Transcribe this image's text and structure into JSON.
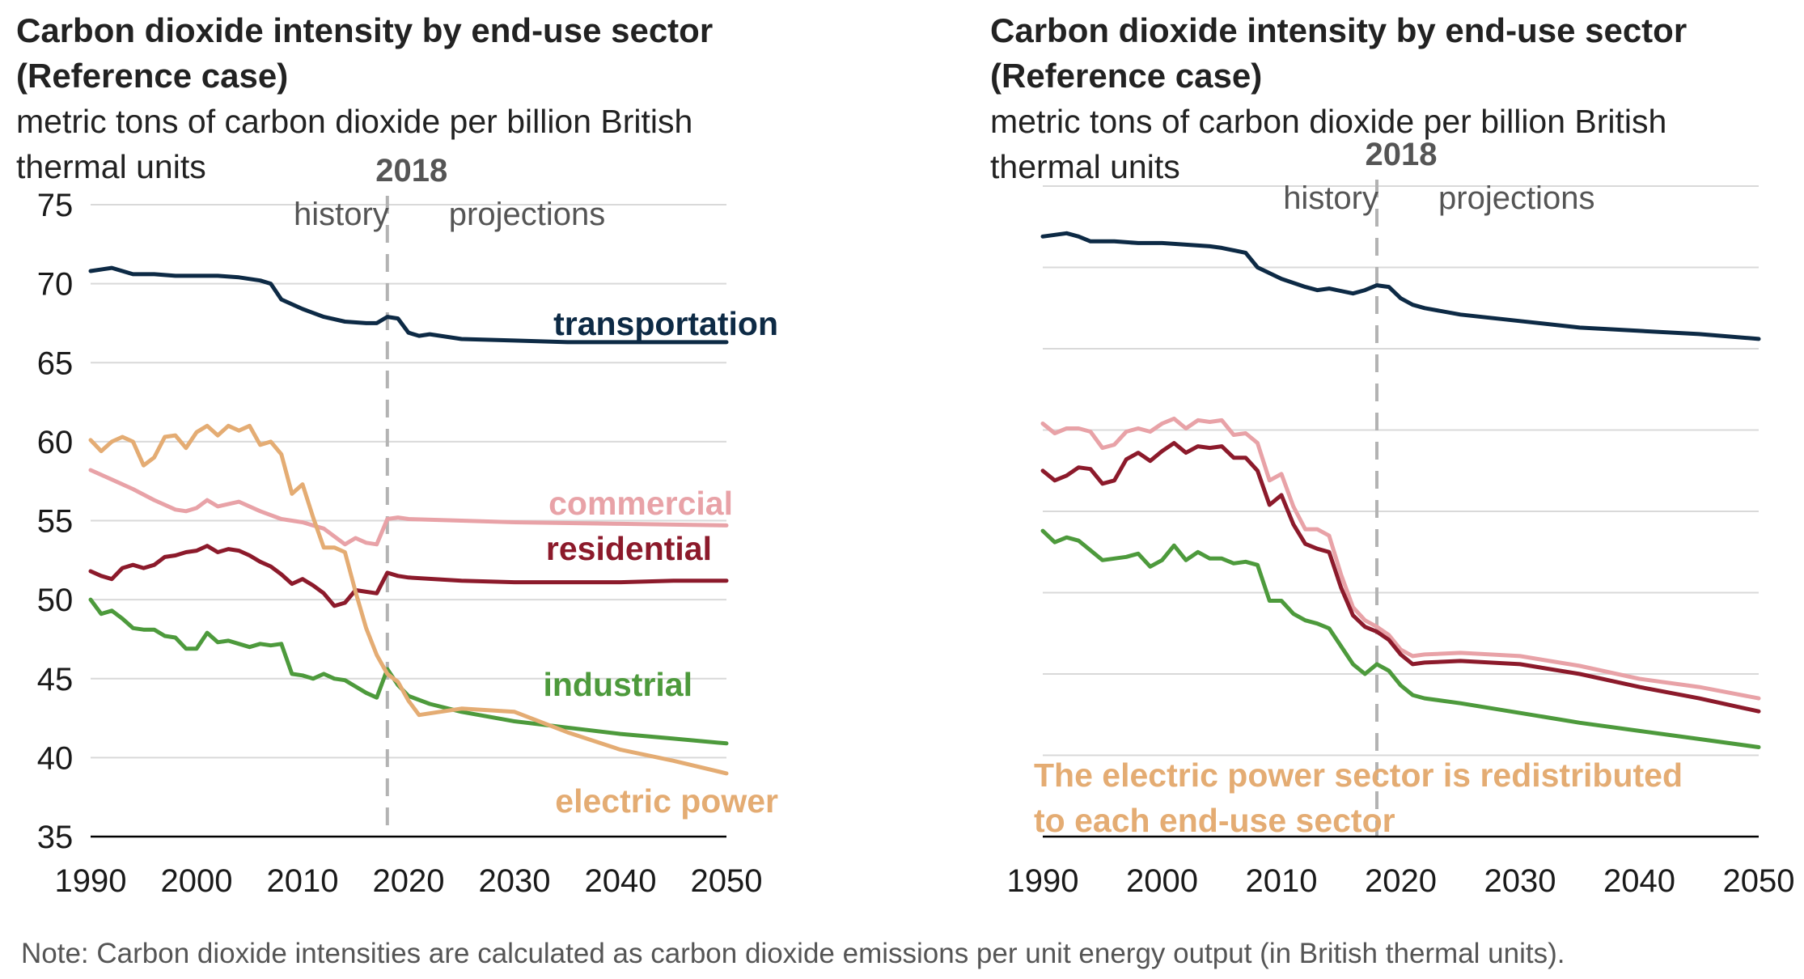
{
  "note": "Note: Carbon dioxide intensities are calculated as carbon dioxide emissions per unit energy output (in British thermal units).",
  "colors": {
    "transportation": "#0d2a45",
    "commercial": "#e8a2a7",
    "residential": "#8c1a2b",
    "industrial": "#4d9a3c",
    "electric_power": "#e4ac73"
  },
  "chart_data": [
    {
      "type": "line",
      "title_lines": [
        "Carbon dioxide intensity by end-use sector",
        "(Reference case)"
      ],
      "subtitle_lines": [
        "metric tons of carbon dioxide per billion British",
        "thermal units"
      ],
      "xlim": [
        1990,
        2050
      ],
      "ylim": [
        35,
        75
      ],
      "x_ticks": [
        "1990",
        "2000",
        "2010",
        "2020",
        "2030",
        "2040",
        "2050"
      ],
      "y_ticks": [
        "35",
        "40",
        "45",
        "50",
        "55",
        "60",
        "65",
        "70",
        "75"
      ],
      "divider_year": "2018",
      "history_label": "history",
      "projections_label": "projections",
      "series": [
        {
          "name": "transportation",
          "color_key": "transportation",
          "x": [
            1990,
            1992,
            1994,
            1996,
            1998,
            2000,
            2002,
            2004,
            2006,
            2007,
            2008,
            2010,
            2012,
            2014,
            2016,
            2017,
            2018,
            2019,
            2020,
            2021,
            2022,
            2025,
            2030,
            2035,
            2040,
            2045,
            2050
          ],
          "y": [
            70.8,
            71.0,
            70.6,
            70.6,
            70.5,
            70.5,
            70.5,
            70.4,
            70.2,
            70.0,
            69.0,
            68.4,
            67.9,
            67.6,
            67.5,
            67.5,
            67.9,
            67.8,
            66.9,
            66.7,
            66.8,
            66.5,
            66.4,
            66.3,
            66.3,
            66.3,
            66.3
          ]
        },
        {
          "name": "commercial",
          "color_key": "commercial",
          "x": [
            1990,
            1992,
            1994,
            1996,
            1998,
            1999,
            2000,
            2001,
            2002,
            2004,
            2006,
            2008,
            2010,
            2012,
            2014,
            2015,
            2016,
            2017,
            2018,
            2019,
            2020,
            2025,
            2030,
            2040,
            2050
          ],
          "y": [
            58.2,
            57.6,
            57.0,
            56.3,
            55.7,
            55.6,
            55.8,
            56.3,
            55.9,
            56.2,
            55.6,
            55.1,
            54.9,
            54.5,
            53.5,
            53.9,
            53.6,
            53.5,
            55.1,
            55.2,
            55.1,
            55.0,
            54.9,
            54.8,
            54.7
          ]
        },
        {
          "name": "residential",
          "color_key": "residential",
          "x": [
            1990,
            1991,
            1992,
            1993,
            1994,
            1995,
            1996,
            1997,
            1998,
            1999,
            2000,
            2001,
            2002,
            2003,
            2004,
            2005,
            2006,
            2007,
            2008,
            2009,
            2010,
            2011,
            2012,
            2013,
            2014,
            2015,
            2016,
            2017,
            2018,
            2019,
            2020,
            2025,
            2030,
            2035,
            2040,
            2045,
            2050
          ],
          "y": [
            51.8,
            51.5,
            51.3,
            52.0,
            52.2,
            52.0,
            52.2,
            52.7,
            52.8,
            53.0,
            53.1,
            53.4,
            53.0,
            53.2,
            53.1,
            52.8,
            52.4,
            52.1,
            51.6,
            51.0,
            51.3,
            50.9,
            50.4,
            49.6,
            49.8,
            50.6,
            50.5,
            50.4,
            51.7,
            51.5,
            51.4,
            51.2,
            51.1,
            51.1,
            51.1,
            51.2,
            51.2
          ]
        },
        {
          "name": "industrial",
          "color_key": "industrial",
          "x": [
            1990,
            1991,
            1992,
            1993,
            1994,
            1995,
            1996,
            1997,
            1998,
            1999,
            2000,
            2001,
            2002,
            2003,
            2004,
            2005,
            2006,
            2007,
            2008,
            2009,
            2010,
            2011,
            2012,
            2013,
            2014,
            2015,
            2016,
            2017,
            2018,
            2019,
            2020,
            2022,
            2025,
            2030,
            2035,
            2040,
            2045,
            2050
          ],
          "y": [
            50.0,
            49.1,
            49.3,
            48.8,
            48.2,
            48.1,
            48.1,
            47.7,
            47.6,
            46.9,
            46.9,
            47.9,
            47.3,
            47.4,
            47.2,
            47.0,
            47.2,
            47.1,
            47.2,
            45.3,
            45.2,
            45.0,
            45.3,
            45.0,
            44.9,
            44.5,
            44.1,
            43.8,
            45.6,
            44.6,
            43.9,
            43.4,
            42.9,
            42.3,
            41.9,
            41.5,
            41.2,
            40.9
          ]
        },
        {
          "name": "electric power",
          "color_key": "electric_power",
          "x": [
            1990,
            1991,
            1992,
            1993,
            1994,
            1995,
            1996,
            1997,
            1998,
            1999,
            2000,
            2001,
            2002,
            2003,
            2004,
            2005,
            2006,
            2007,
            2008,
            2009,
            2010,
            2011,
            2012,
            2013,
            2014,
            2015,
            2016,
            2017,
            2018,
            2019,
            2020,
            2021,
            2022,
            2025,
            2030,
            2035,
            2040,
            2045,
            2050
          ],
          "y": [
            60.1,
            59.4,
            60.0,
            60.3,
            60.0,
            58.5,
            59.0,
            60.3,
            60.4,
            59.6,
            60.6,
            61.0,
            60.4,
            61.0,
            60.7,
            61.0,
            59.8,
            60.0,
            59.2,
            56.7,
            57.3,
            55.2,
            53.3,
            53.3,
            53.0,
            50.5,
            48.2,
            46.5,
            45.3,
            44.8,
            43.6,
            42.7,
            42.8,
            43.1,
            42.9,
            41.6,
            40.5,
            39.8,
            39.0
          ]
        }
      ],
      "series_labels": [
        "transportation",
        "commercial",
        "residential",
        "industrial",
        "electric power"
      ]
    },
    {
      "type": "line",
      "title_lines": [
        "Carbon dioxide intensity by end-use sector",
        "(Reference case)"
      ],
      "subtitle_lines": [
        "metric tons of carbon dioxide per billion British",
        "thermal units"
      ],
      "xlim": [
        1990,
        2050
      ],
      "ylim": [
        35,
        75
      ],
      "x_ticks": [
        "1990",
        "2000",
        "2010",
        "2020",
        "2030",
        "2040",
        "2050"
      ],
      "y_ticks": [],
      "divider_year": "2018",
      "history_label": "history",
      "projections_label": "projections",
      "annotation_lines": [
        "The electric power sector is redistributed",
        "to each end-use sector"
      ],
      "series": [
        {
          "name": "transportation",
          "color_key": "transportation",
          "x": [
            1990,
            1991,
            1992,
            1993,
            1994,
            1996,
            1998,
            2000,
            2002,
            2004,
            2005,
            2007,
            2008,
            2010,
            2012,
            2013,
            2014,
            2016,
            2017,
            2018,
            2019,
            2020,
            2021,
            2022,
            2025,
            2030,
            2035,
            2040,
            2045,
            2050
          ],
          "y": [
            71.9,
            72.0,
            72.1,
            71.9,
            71.6,
            71.6,
            71.5,
            71.5,
            71.4,
            71.3,
            71.2,
            70.9,
            70.0,
            69.3,
            68.8,
            68.6,
            68.7,
            68.4,
            68.6,
            68.9,
            68.8,
            68.1,
            67.7,
            67.5,
            67.1,
            66.7,
            66.3,
            66.1,
            65.9,
            65.6
          ]
        },
        {
          "name": "commercial",
          "color_key": "commercial",
          "x": [
            1990,
            1991,
            1992,
            1993,
            1994,
            1995,
            1996,
            1997,
            1998,
            1999,
            2000,
            2001,
            2002,
            2003,
            2004,
            2005,
            2006,
            2007,
            2008,
            2009,
            2010,
            2011,
            2012,
            2013,
            2014,
            2015,
            2016,
            2017,
            2018,
            2019,
            2020,
            2021,
            2022,
            2025,
            2030,
            2035,
            2040,
            2045,
            2050
          ],
          "y": [
            60.4,
            59.8,
            60.1,
            60.1,
            59.9,
            58.9,
            59.1,
            59.9,
            60.1,
            59.9,
            60.4,
            60.7,
            60.1,
            60.6,
            60.5,
            60.6,
            59.7,
            59.8,
            59.2,
            56.9,
            57.3,
            55.3,
            53.9,
            53.9,
            53.5,
            51.1,
            49.1,
            48.3,
            47.9,
            47.4,
            46.5,
            46.1,
            46.2,
            46.3,
            46.1,
            45.5,
            44.7,
            44.2,
            43.5
          ]
        },
        {
          "name": "residential",
          "color_key": "residential",
          "x": [
            1990,
            1991,
            1992,
            1993,
            1994,
            1995,
            1996,
            1997,
            1998,
            1999,
            2000,
            2001,
            2002,
            2003,
            2004,
            2005,
            2006,
            2007,
            2008,
            2009,
            2010,
            2011,
            2012,
            2013,
            2014,
            2015,
            2016,
            2017,
            2018,
            2019,
            2020,
            2021,
            2022,
            2025,
            2030,
            2035,
            2040,
            2045,
            2050
          ],
          "y": [
            57.5,
            56.9,
            57.2,
            57.7,
            57.6,
            56.7,
            56.9,
            58.2,
            58.6,
            58.1,
            58.7,
            59.2,
            58.6,
            59.0,
            58.9,
            59.0,
            58.3,
            58.3,
            57.5,
            55.4,
            56.0,
            54.2,
            53.0,
            52.7,
            52.5,
            50.3,
            48.6,
            47.9,
            47.6,
            47.1,
            46.2,
            45.6,
            45.7,
            45.8,
            45.6,
            45.0,
            44.2,
            43.5,
            42.7
          ]
        },
        {
          "name": "industrial",
          "color_key": "industrial",
          "x": [
            1990,
            1991,
            1992,
            1993,
            1994,
            1995,
            1996,
            1997,
            1998,
            1999,
            2000,
            2001,
            2002,
            2003,
            2004,
            2005,
            2006,
            2007,
            2008,
            2009,
            2010,
            2011,
            2012,
            2013,
            2014,
            2015,
            2016,
            2017,
            2018,
            2019,
            2020,
            2021,
            2022,
            2025,
            2030,
            2035,
            2040,
            2045,
            2050
          ],
          "y": [
            53.8,
            53.1,
            53.4,
            53.2,
            52.6,
            52.0,
            52.1,
            52.2,
            52.4,
            51.6,
            52.0,
            52.9,
            52.0,
            52.5,
            52.1,
            52.1,
            51.8,
            51.9,
            51.7,
            49.5,
            49.5,
            48.7,
            48.3,
            48.1,
            47.8,
            46.7,
            45.6,
            45.0,
            45.6,
            45.2,
            44.3,
            43.7,
            43.5,
            43.2,
            42.6,
            42.0,
            41.5,
            41.0,
            40.5
          ]
        }
      ],
      "series_labels": []
    }
  ]
}
